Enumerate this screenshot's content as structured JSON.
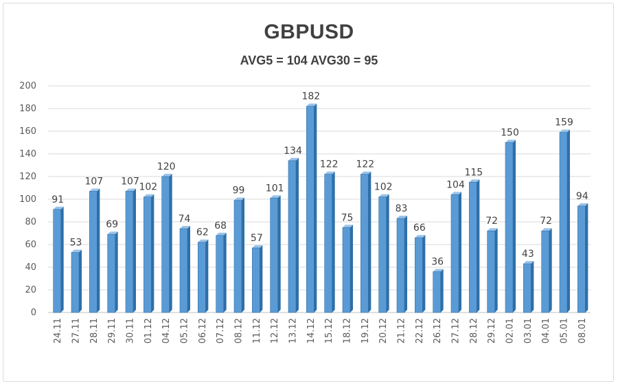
{
  "chart_data": {
    "type": "bar",
    "title": "GBPUSD",
    "subtitle": "AVG5 = 104 AVG30 = 95",
    "categories": [
      "24.11",
      "27.11",
      "28.11",
      "29.11",
      "30.11",
      "01.12",
      "04.12",
      "05.12",
      "06.12",
      "07.12",
      "08.12",
      "11.12",
      "12.12",
      "13.12",
      "14.12",
      "15.12",
      "18.12",
      "19.12",
      "20.12",
      "21.12",
      "22.12",
      "26.12",
      "27.12",
      "28.12",
      "29.12",
      "02.01",
      "03.01",
      "04.01",
      "05.01",
      "08.01"
    ],
    "values": [
      91,
      53,
      107,
      69,
      107,
      102,
      120,
      74,
      62,
      68,
      99,
      57,
      101,
      134,
      182,
      122,
      75,
      122,
      102,
      83,
      66,
      36,
      104,
      115,
      72,
      150,
      43,
      72,
      159,
      94
    ],
    "ylim": [
      0,
      200
    ],
    "yticks": [
      0,
      20,
      40,
      60,
      80,
      100,
      120,
      140,
      160,
      180,
      200
    ],
    "grid": true,
    "legend": "none",
    "xlabel": "",
    "ylabel": "",
    "colors": {
      "bar_front": "#5b9bd5",
      "bar_side": "#2e6fa8",
      "bar_top": "#9cc3e8",
      "grid": "#d9d9d9",
      "axis": "#bfbfbf"
    }
  }
}
